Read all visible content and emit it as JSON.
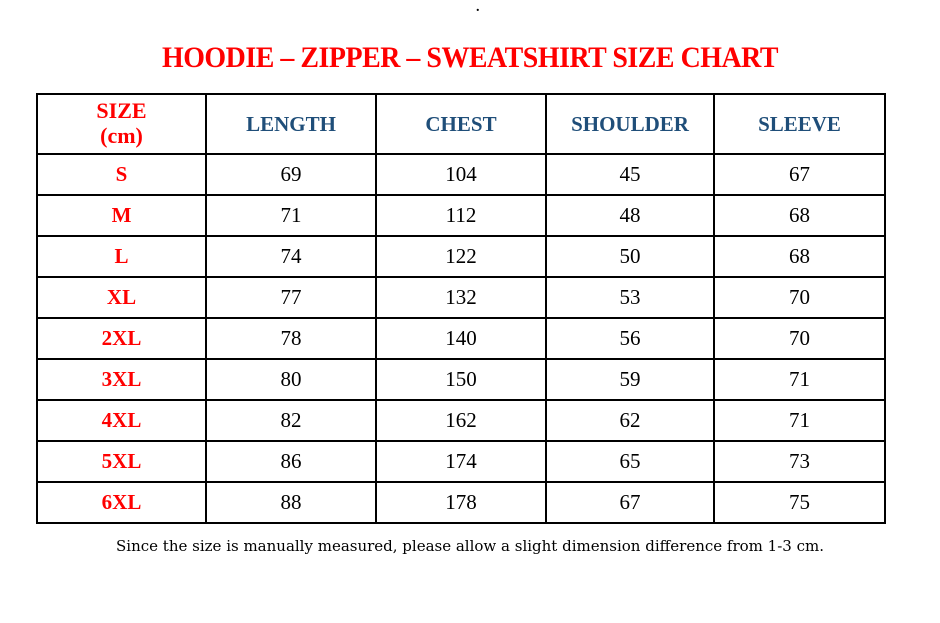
{
  "page": {
    "top_dot": ".",
    "title": "HOODIE – ZIPPER – SWEATSHIRT SIZE CHART",
    "footer_note": "Since the size is manually measured, please allow a slight dimension difference from 1-3 cm."
  },
  "colors": {
    "background": "#FFFFFF",
    "title_red": "#FF0000",
    "size_label_red": "#FF0000",
    "column_header_blue": "#1F4E79",
    "value_black": "#000000",
    "table_border": "#000000"
  },
  "chart_data": {
    "type": "table",
    "title": "HOODIE – ZIPPER – SWEATSHIRT SIZE CHART",
    "units": "cm",
    "header": {
      "size_line1": "SIZE",
      "size_line2": "(cm)",
      "columns": [
        "LENGTH",
        "CHEST",
        "SHOULDER",
        "SLEEVE"
      ]
    },
    "rows": [
      {
        "size": "S",
        "length": "69",
        "chest": "104",
        "shoulder": "45",
        "sleeve": "67"
      },
      {
        "size": "M",
        "length": "71",
        "chest": "112",
        "shoulder": "48",
        "sleeve": "68"
      },
      {
        "size": "L",
        "length": "74",
        "chest": "122",
        "shoulder": "50",
        "sleeve": "68"
      },
      {
        "size": "XL",
        "length": "77",
        "chest": "132",
        "shoulder": "53",
        "sleeve": "70"
      },
      {
        "size": "2XL",
        "length": "78",
        "chest": "140",
        "shoulder": "56",
        "sleeve": "70"
      },
      {
        "size": "3XL",
        "length": "80",
        "chest": "150",
        "shoulder": "59",
        "sleeve": "71"
      },
      {
        "size": "4XL",
        "length": "82",
        "chest": "162",
        "shoulder": "62",
        "sleeve": "71"
      },
      {
        "size": "5XL",
        "length": "86",
        "chest": "174",
        "shoulder": "65",
        "sleeve": "73"
      },
      {
        "size": "6XL",
        "length": "88",
        "chest": "178",
        "shoulder": "67",
        "sleeve": "75"
      }
    ]
  }
}
